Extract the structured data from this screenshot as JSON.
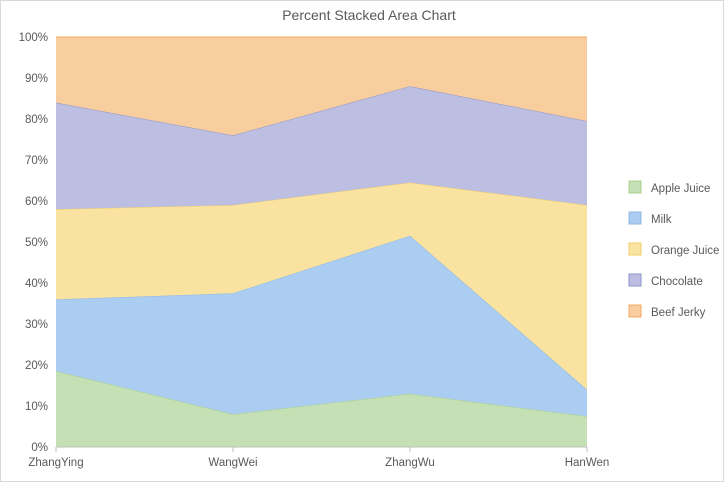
{
  "chart_data": {
    "type": "area",
    "stacking": "percent",
    "title": "Percent Stacked Area Chart",
    "categories": [
      "ZhangYing",
      "WangWei",
      "ZhangWu",
      "HanWen"
    ],
    "series": [
      {
        "name": "Apple Juice",
        "values": [
          18.5,
          8,
          13,
          7.5
        ],
        "fill": "#c5e0b4",
        "stroke": "#a9d18e"
      },
      {
        "name": "Milk",
        "values": [
          17.5,
          29.5,
          38.5,
          6.5
        ],
        "fill": "#aacdf1",
        "stroke": "#8fb8e3"
      },
      {
        "name": "Orange Juice",
        "values": [
          22,
          21.5,
          13,
          45
        ],
        "fill": "#fae3a0",
        "stroke": "#f0cf6e"
      },
      {
        "name": "Chocolate",
        "values": [
          26,
          17,
          23.5,
          20.5
        ],
        "fill": "#bcbfe2",
        "stroke": "#8f93c9"
      },
      {
        "name": "Beef Jerky",
        "values": [
          16,
          24,
          12,
          20.5
        ],
        "fill": "#f8ce9f",
        "stroke": "#f0a860"
      }
    ],
    "y_ticks": [
      "0%",
      "10%",
      "20%",
      "30%",
      "40%",
      "50%",
      "60%",
      "70%",
      "80%",
      "90%",
      "100%"
    ],
    "ylim": [
      0,
      100
    ],
    "grid": false,
    "legend_position": "right"
  }
}
